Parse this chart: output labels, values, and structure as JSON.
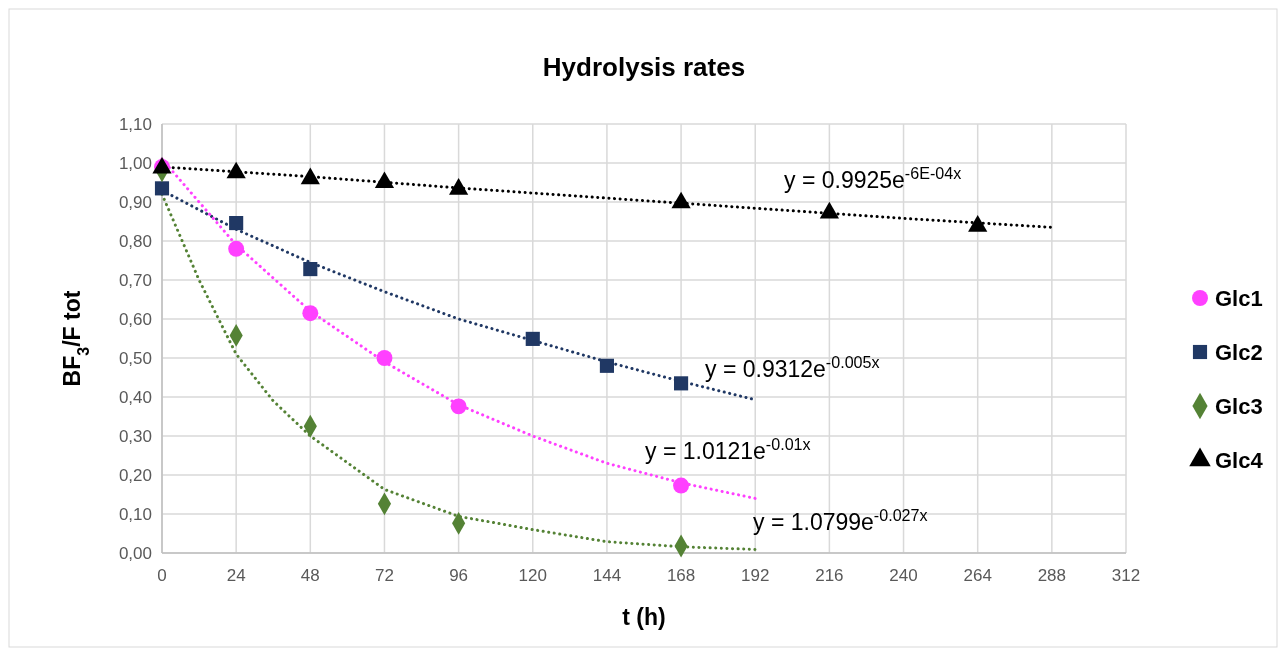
{
  "chart_data": {
    "type": "scatter",
    "title": "Hydrolysis rates",
    "xlabel": "t (h)",
    "ylabel": "BF$_{3}$/F tot",
    "xlim": [
      0,
      312
    ],
    "xticks": [
      0,
      24,
      48,
      72,
      96,
      120,
      144,
      168,
      192,
      216,
      240,
      264,
      288,
      312
    ],
    "ylim": [
      0,
      1.1
    ],
    "yticks": [
      {
        "value": 0,
        "label": "0,00"
      },
      {
        "value": 0.1,
        "label": "0,10"
      },
      {
        "value": 0.2,
        "label": "0,20"
      },
      {
        "value": 0.3,
        "label": "0,30"
      },
      {
        "value": 0.4,
        "label": "0,40"
      },
      {
        "value": 0.5,
        "label": "0,50"
      },
      {
        "value": 0.6,
        "label": "0,60"
      },
      {
        "value": 0.7,
        "label": "0,70"
      },
      {
        "value": 0.8,
        "label": "0,80"
      },
      {
        "value": 0.9,
        "label": "0,90"
      },
      {
        "value": 1,
        "label": "1,00"
      },
      {
        "value": 1.1,
        "label": "1,10"
      }
    ],
    "grid": true,
    "legend": "right",
    "series": [
      {
        "type": "line",
        "color": "#000000",
        "marker": "none",
        "line_style": "dotted",
        "x": [
          0,
          48,
          96,
          144,
          192,
          240,
          288
        ],
        "values": [
          0.99,
          0.965,
          0.936,
          0.91,
          0.884,
          0.858,
          0.835
        ]
      },
      {
        "type": "line",
        "color": "#203864",
        "marker": "none",
        "line_style": "dotted",
        "x": [
          0,
          24,
          48,
          72,
          96,
          120,
          144,
          168,
          192
        ],
        "values": [
          0.93,
          0.83,
          0.745,
          0.67,
          0.6,
          0.545,
          0.49,
          0.44,
          0.393
        ]
      },
      {
        "type": "line",
        "color": "#ff40ff",
        "marker": "none",
        "line_style": "dotted",
        "x": [
          0,
          24,
          48,
          72,
          96,
          120,
          144,
          168,
          192
        ],
        "values": [
          1.01,
          0.79,
          0.62,
          0.49,
          0.38,
          0.3,
          0.23,
          0.18,
          0.14
        ]
      },
      {
        "type": "line",
        "color": "#548235",
        "marker": "none",
        "line_style": "dotted",
        "x": [
          0,
          12,
          24,
          36,
          48,
          72,
          96,
          120,
          144,
          168,
          192
        ],
        "values": [
          0.92,
          0.7,
          0.51,
          0.39,
          0.3,
          0.163,
          0.094,
          0.06,
          0.029,
          0.016,
          0.009
        ]
      },
      {
        "name": "Glc1",
        "color": "#ff40ff",
        "marker": "circle",
        "x": [
          0,
          24,
          48,
          72,
          96,
          168
        ],
        "values": [
          0.99,
          0.78,
          0.615,
          0.5,
          0.376,
          0.173
        ]
      },
      {
        "name": "Glc2",
        "color": "#203864",
        "marker": "square",
        "x": [
          0,
          24,
          48,
          120,
          144,
          168
        ],
        "values": [
          0.935,
          0.846,
          0.728,
          0.549,
          0.48,
          0.435
        ]
      },
      {
        "name": "Glc3",
        "color": "#548235",
        "marker": "diamond",
        "x": [
          0,
          24,
          48,
          72,
          96,
          168
        ],
        "values": [
          0.98,
          0.558,
          0.325,
          0.126,
          0.076,
          0.018
        ]
      },
      {
        "name": "Glc4",
        "color": "#000000",
        "marker": "triangle",
        "x": [
          0,
          24,
          48,
          72,
          96,
          168,
          216,
          264
        ],
        "values": [
          0.987,
          0.975,
          0.96,
          0.95,
          0.933,
          0.898,
          0.872,
          0.838
        ]
      }
    ],
    "annotations": [
      "y = 0.9925e$^{-6E-04x}$",
      "y = 0.9312e$^{-0.005x}$",
      "y = 1.0121e$^{-0.01x}$",
      "y = 1.0799e$^{-0.027x}$"
    ]
  }
}
